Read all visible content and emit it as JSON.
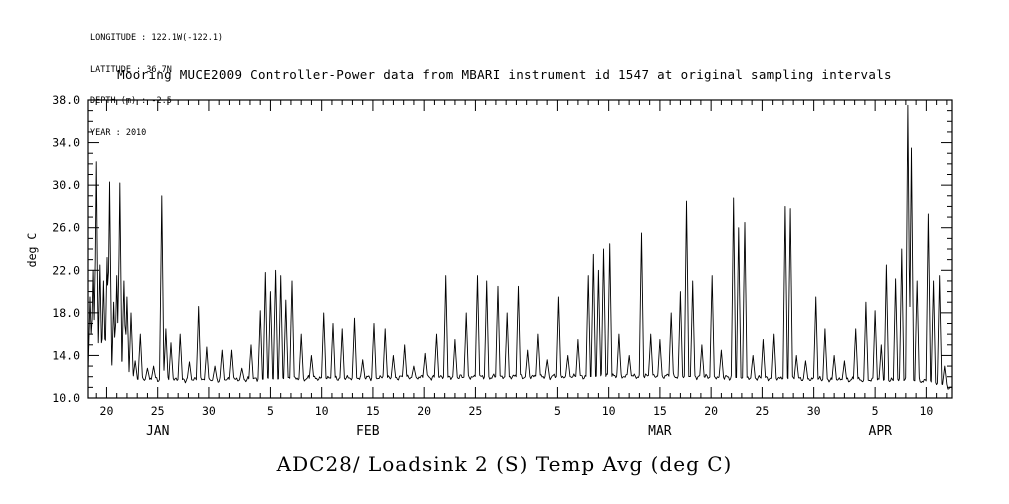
{
  "header": {
    "metadata_lines": [
      "LONGITUDE : 122.1W(-122.1)",
      "LATITUDE : 36.7N",
      "DEPTH (m) : -2.5",
      "YEAR : 2010"
    ],
    "title": "Mooring MUCE2009 Controller-Power data from MBARI instrument id 1547 at original sampling intervals"
  },
  "footer": {
    "axis_title": "ADC28/ Loadsink 2 (S) Temp Avg (deg C)"
  },
  "chart_data": {
    "type": "line",
    "title": "Mooring MUCE2009 Controller-Power data from MBARI instrument id 1547 at original sampling intervals",
    "series_name": "ADC28/ Loadsink 2 (S) Temp Avg",
    "units": "deg C",
    "ylabel": "deg C",
    "xlabel": "",
    "year": 2010,
    "background": "#ffffff",
    "line_color": "#000000",
    "grid": false,
    "legend": false,
    "ylim": [
      10.0,
      38.0
    ],
    "ytick_values": [
      10.0,
      14.0,
      18.0,
      22.0,
      26.0,
      30.0,
      34.0,
      38.0
    ],
    "ytick_labels": [
      "10.0",
      "14.0",
      "18.0",
      "22.0",
      "26.0",
      "30.0",
      "34.0",
      "38.0"
    ],
    "y_minor_interval": 1,
    "x_domain_day_of_year": [
      18.2,
      102.5
    ],
    "x_minor_interval_days": 1,
    "xticks": [
      {
        "day": 20,
        "label": "20"
      },
      {
        "day": 25,
        "label": "25"
      },
      {
        "day": 30,
        "label": "30"
      },
      {
        "day": 36,
        "label": "5"
      },
      {
        "day": 41,
        "label": "10"
      },
      {
        "day": 46,
        "label": "15"
      },
      {
        "day": 51,
        "label": "20"
      },
      {
        "day": 56,
        "label": "25"
      },
      {
        "day": 64,
        "label": "5"
      },
      {
        "day": 69,
        "label": "10"
      },
      {
        "day": 74,
        "label": "15"
      },
      {
        "day": 79,
        "label": "20"
      },
      {
        "day": 84,
        "label": "25"
      },
      {
        "day": 89,
        "label": "30"
      },
      {
        "day": 95,
        "label": "5"
      },
      {
        "day": 100,
        "label": "10"
      }
    ],
    "month_labels": [
      {
        "day": 25.0,
        "label": "JAN"
      },
      {
        "day": 45.5,
        "label": "FEB"
      },
      {
        "day": 74.0,
        "label": "MAR"
      },
      {
        "day": 95.5,
        "label": "APR"
      }
    ],
    "baseline_day_value_pairs": [
      [
        18.2,
        11.8
      ],
      [
        30,
        11.7
      ],
      [
        45,
        11.9
      ],
      [
        60,
        12.0
      ],
      [
        75,
        12.05
      ],
      [
        90,
        11.75
      ],
      [
        100,
        11.6
      ],
      [
        101.5,
        11.3
      ],
      [
        102.5,
        10.9
      ]
    ],
    "spike_half_width_days": 0.22,
    "spike_day_peak_pairs": [
      [
        18.4,
        19.5
      ],
      [
        18.7,
        22.0
      ],
      [
        19.0,
        32.2
      ],
      [
        19.35,
        22.5
      ],
      [
        19.7,
        21.0
      ],
      [
        20.05,
        23.2
      ],
      [
        20.3,
        30.3
      ],
      [
        20.7,
        19.0
      ],
      [
        21.0,
        21.5
      ],
      [
        21.3,
        30.2
      ],
      [
        21.7,
        21.0
      ],
      [
        22.0,
        19.5
      ],
      [
        22.4,
        18.0
      ],
      [
        22.8,
        13.5
      ],
      [
        23.3,
        16.0
      ],
      [
        24.0,
        12.8
      ],
      [
        24.6,
        13.0
      ],
      [
        25.4,
        29.0
      ],
      [
        25.8,
        16.5
      ],
      [
        26.3,
        15.2
      ],
      [
        27.2,
        16.0
      ],
      [
        28.1,
        13.4
      ],
      [
        29.0,
        18.6
      ],
      [
        29.8,
        14.8
      ],
      [
        30.6,
        13.0
      ],
      [
        31.3,
        14.5
      ],
      [
        32.2,
        14.5
      ],
      [
        33.2,
        12.8
      ],
      [
        34.1,
        15.0
      ],
      [
        35.0,
        18.2
      ],
      [
        35.5,
        21.8
      ],
      [
        36.0,
        20.0
      ],
      [
        36.5,
        22.0
      ],
      [
        37.0,
        21.5
      ],
      [
        37.5,
        19.2
      ],
      [
        38.1,
        21.0
      ],
      [
        39.0,
        16.0
      ],
      [
        40.0,
        14.0
      ],
      [
        41.2,
        18.0
      ],
      [
        42.1,
        17.0
      ],
      [
        43.0,
        16.5
      ],
      [
        44.2,
        17.5
      ],
      [
        45.0,
        13.6
      ],
      [
        46.1,
        17.0
      ],
      [
        47.2,
        16.5
      ],
      [
        48.0,
        14.0
      ],
      [
        49.1,
        15.0
      ],
      [
        50.0,
        13.0
      ],
      [
        51.1,
        14.2
      ],
      [
        52.2,
        16.0
      ],
      [
        53.1,
        21.5
      ],
      [
        54.0,
        15.5
      ],
      [
        55.1,
        18.0
      ],
      [
        56.2,
        21.5
      ],
      [
        57.1,
        21.0
      ],
      [
        58.2,
        20.5
      ],
      [
        59.1,
        18.0
      ],
      [
        60.2,
        20.5
      ],
      [
        61.1,
        14.5
      ],
      [
        62.1,
        16.0
      ],
      [
        63.0,
        13.6
      ],
      [
        64.1,
        19.5
      ],
      [
        65.0,
        14.0
      ],
      [
        66.0,
        15.5
      ],
      [
        67.0,
        21.5
      ],
      [
        67.5,
        23.5
      ],
      [
        68.0,
        22.0
      ],
      [
        68.5,
        24.0
      ],
      [
        69.1,
        24.5
      ],
      [
        70.0,
        16.0
      ],
      [
        71.0,
        14.0
      ],
      [
        72.2,
        25.5
      ],
      [
        73.1,
        16.0
      ],
      [
        74.0,
        15.5
      ],
      [
        75.1,
        18.0
      ],
      [
        76.0,
        20.0
      ],
      [
        76.6,
        28.5
      ],
      [
        77.2,
        21.0
      ],
      [
        78.1,
        15.0
      ],
      [
        79.1,
        21.5
      ],
      [
        80.0,
        14.5
      ],
      [
        81.2,
        28.8
      ],
      [
        81.7,
        26.0
      ],
      [
        82.3,
        26.5
      ],
      [
        83.1,
        14.0
      ],
      [
        84.1,
        15.5
      ],
      [
        85.1,
        16.0
      ],
      [
        86.2,
        28.0
      ],
      [
        86.7,
        27.8
      ],
      [
        87.3,
        14.0
      ],
      [
        88.2,
        13.5
      ],
      [
        89.2,
        19.5
      ],
      [
        90.1,
        16.5
      ],
      [
        91.0,
        14.0
      ],
      [
        92.0,
        13.5
      ],
      [
        93.1,
        16.5
      ],
      [
        94.1,
        19.0
      ],
      [
        95.0,
        18.2
      ],
      [
        95.6,
        15.0
      ],
      [
        96.1,
        22.5
      ],
      [
        97.0,
        21.2
      ],
      [
        97.6,
        24.0
      ],
      [
        98.2,
        37.5
      ],
      [
        98.55,
        33.5
      ],
      [
        99.1,
        21.0
      ],
      [
        100.2,
        27.3
      ],
      [
        100.7,
        21.0
      ],
      [
        101.3,
        21.5
      ],
      [
        101.8,
        13.0
      ]
    ]
  }
}
